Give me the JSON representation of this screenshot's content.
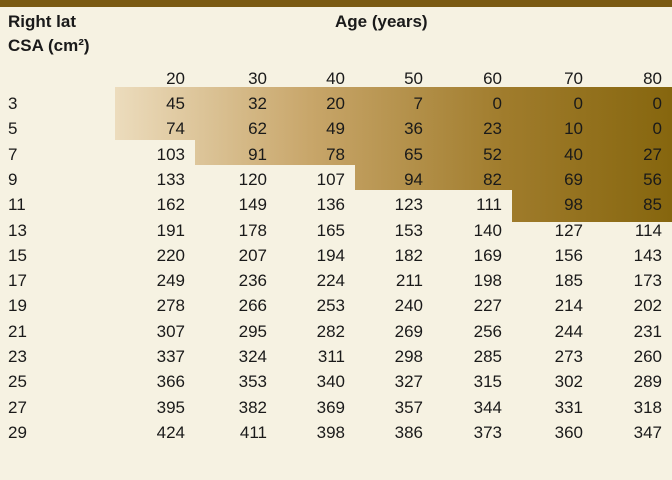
{
  "header": {
    "row_label": [
      "Right lat",
      "CSA (cm²)"
    ],
    "column_label": "Age (years)"
  },
  "table": {
    "columns": [
      20,
      30,
      40,
      50,
      60,
      70,
      80
    ],
    "rows": [
      {
        "label": 3,
        "values": [
          45,
          32,
          20,
          7,
          0,
          0,
          0
        ]
      },
      {
        "label": 5,
        "values": [
          74,
          62,
          49,
          36,
          23,
          10,
          0
        ]
      },
      {
        "label": 7,
        "values": [
          103,
          91,
          78,
          65,
          52,
          40,
          27
        ]
      },
      {
        "label": 9,
        "values": [
          133,
          120,
          107,
          94,
          82,
          69,
          56
        ]
      },
      {
        "label": 11,
        "values": [
          162,
          149,
          136,
          123,
          111,
          98,
          85
        ]
      },
      {
        "label": 13,
        "values": [
          191,
          178,
          165,
          153,
          140,
          127,
          114
        ]
      },
      {
        "label": 15,
        "values": [
          220,
          207,
          194,
          182,
          169,
          156,
          143
        ]
      },
      {
        "label": 17,
        "values": [
          249,
          236,
          224,
          211,
          198,
          185,
          173
        ]
      },
      {
        "label": 19,
        "values": [
          278,
          266,
          253,
          240,
          227,
          214,
          202
        ]
      },
      {
        "label": 21,
        "values": [
          307,
          295,
          282,
          269,
          256,
          244,
          231
        ]
      },
      {
        "label": 23,
        "values": [
          337,
          324,
          311,
          298,
          285,
          273,
          260
        ]
      },
      {
        "label": 25,
        "values": [
          366,
          353,
          340,
          327,
          315,
          302,
          289
        ]
      },
      {
        "label": 27,
        "values": [
          395,
          382,
          369,
          357,
          344,
          331,
          318
        ]
      },
      {
        "label": 29,
        "values": [
          424,
          411,
          398,
          386,
          373,
          360,
          347
        ]
      }
    ]
  }
}
